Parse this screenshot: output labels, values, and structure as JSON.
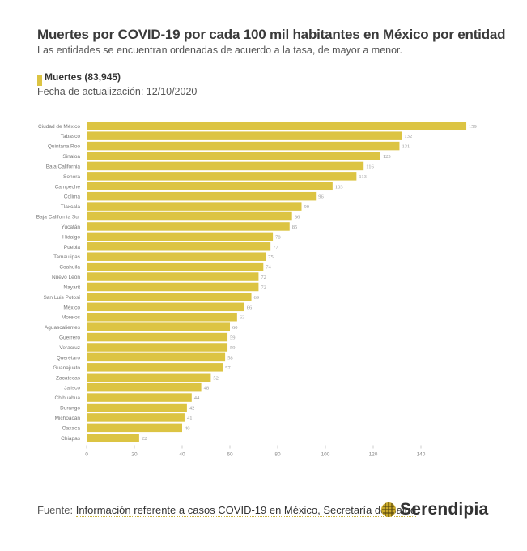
{
  "header": {
    "title": "Muertes por COVID-19 por cada 100 mil habitantes en México por entidad",
    "subtitle": "Las entidades se encuentran ordenadas de acuerdo a la tasa, de mayor a menor.",
    "legend_label": "Muertes (83,945)",
    "updated": "Fecha de actualización: 12/10/2020"
  },
  "footer": {
    "source_prefix": "Fuente: ",
    "source_link": "Información referente a casos COVID-19 en México, Secretaría de Salud",
    "brand": "Serendipia"
  },
  "colors": {
    "bar": "#dcc443",
    "label": "#777777",
    "value": "#999999",
    "tick": "#888888"
  },
  "chart_data": {
    "type": "bar",
    "orientation": "horizontal",
    "title": "Muertes por COVID-19 por cada 100 mil habitantes en México por entidad",
    "xlabel": "",
    "ylabel": "",
    "xlim": [
      0,
      160
    ],
    "xticks": [
      0,
      20,
      40,
      60,
      80,
      100,
      120,
      140
    ],
    "grid": false,
    "legend": [
      "Muertes (83,945)"
    ],
    "legend_position": "top-left",
    "categories": [
      "Ciudad de México",
      "Tabasco",
      "Quintana Roo",
      "Sinaloa",
      "Baja California",
      "Sonora",
      "Campeche",
      "Colima",
      "Tlaxcala",
      "Baja California Sur",
      "Yucatán",
      "Hidalgo",
      "Puebla",
      "Tamaulipas",
      "Coahuila",
      "Nuevo León",
      "Nayarit",
      "San Luis Potosí",
      "México",
      "Morelos",
      "Aguascalientes",
      "Guerrero",
      "Veracruz",
      "Querétaro",
      "Guanajuato",
      "Zacatecas",
      "Jalisco",
      "Chihuahua",
      "Durango",
      "Michoacán",
      "Oaxaca",
      "Chiapas"
    ],
    "values": [
      159,
      132,
      131,
      123,
      116,
      113,
      103,
      96,
      90,
      86,
      85,
      78,
      77,
      75,
      74,
      72,
      72,
      69,
      66,
      63,
      60,
      59,
      59,
      58,
      57,
      52,
      48,
      44,
      42,
      41,
      40,
      22
    ]
  }
}
